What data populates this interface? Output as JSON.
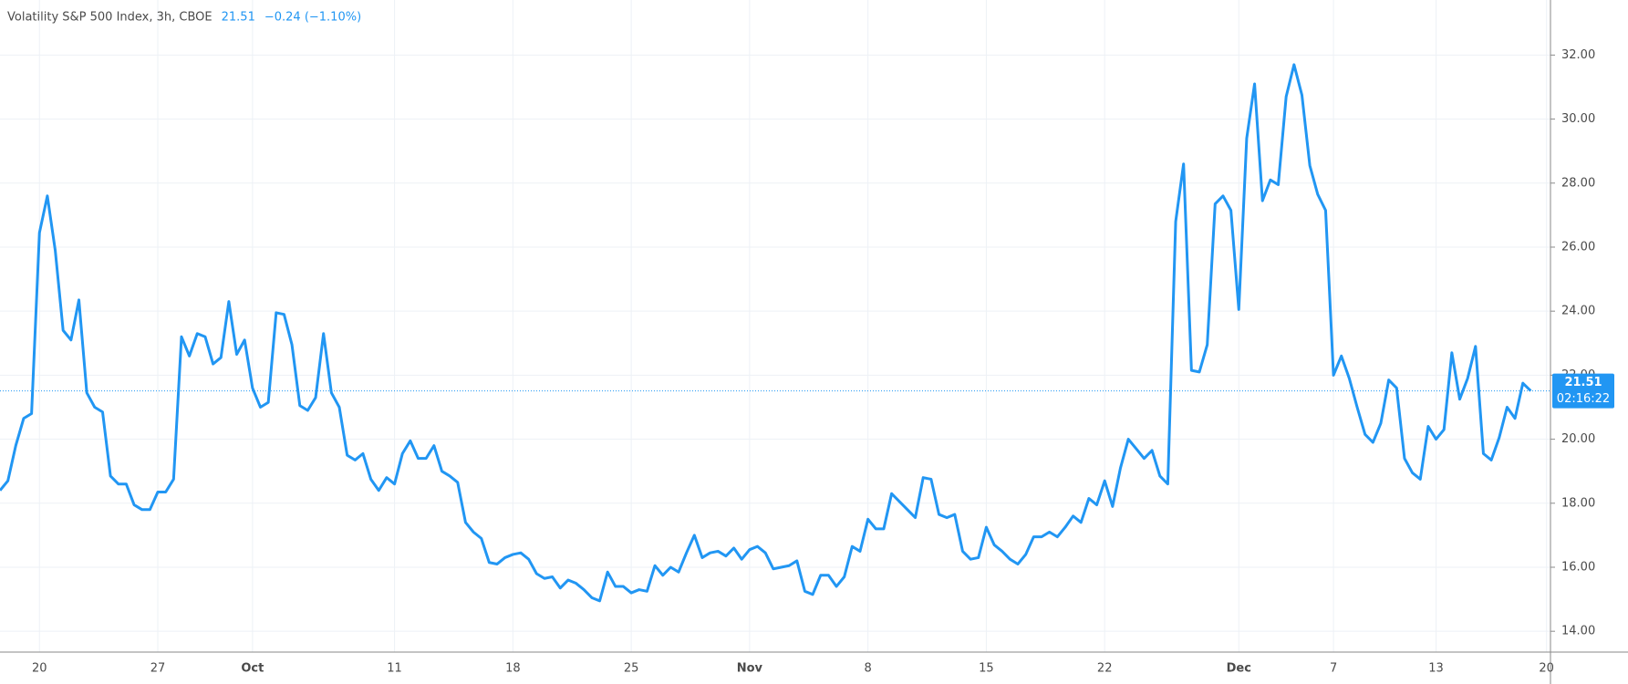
{
  "chart_data": {
    "type": "line",
    "title": "Volatility S&P 500 Index, 3h, CBOE",
    "change": "−0.24 (−1.10%)",
    "countdown": "02:16:22",
    "color": "#2196f3",
    "grid": true,
    "ylim": [
      13.35,
      33.72
    ],
    "yticks": [
      {
        "value": 14,
        "label": "14.00"
      },
      {
        "value": 16,
        "label": "16.00"
      },
      {
        "value": 18,
        "label": "18.00"
      },
      {
        "value": 20,
        "label": "20.00"
      },
      {
        "value": 22,
        "label": "22.00"
      },
      {
        "value": 24,
        "label": "24.00"
      },
      {
        "value": 26,
        "label": "26.00"
      },
      {
        "value": 28,
        "label": "28.00"
      },
      {
        "value": 30,
        "label": "30.00"
      },
      {
        "value": 32,
        "label": "32.00"
      }
    ],
    "categories": [
      null,
      null,
      null,
      null,
      null,
      "20",
      null,
      null,
      null,
      null,
      null,
      null,
      null,
      null,
      null,
      null,
      null,
      null,
      null,
      null,
      "27",
      null,
      null,
      null,
      null,
      null,
      null,
      null,
      null,
      null,
      null,
      null,
      "Oct",
      null,
      null,
      null,
      null,
      null,
      null,
      null,
      null,
      null,
      null,
      null,
      null,
      null,
      null,
      null,
      null,
      null,
      "11",
      null,
      null,
      null,
      null,
      null,
      null,
      null,
      null,
      null,
      null,
      null,
      null,
      null,
      null,
      "18",
      null,
      null,
      null,
      null,
      null,
      null,
      null,
      null,
      null,
      null,
      null,
      null,
      null,
      null,
      "25",
      null,
      null,
      null,
      null,
      null,
      null,
      null,
      null,
      null,
      null,
      null,
      null,
      null,
      null,
      "Nov",
      null,
      null,
      null,
      null,
      null,
      null,
      null,
      null,
      null,
      null,
      null,
      null,
      null,
      null,
      "8",
      null,
      null,
      null,
      null,
      null,
      null,
      null,
      null,
      null,
      null,
      null,
      null,
      null,
      null,
      "15",
      null,
      null,
      null,
      null,
      null,
      null,
      null,
      null,
      null,
      null,
      null,
      null,
      null,
      null,
      "22",
      null,
      null,
      null,
      null,
      null,
      null,
      null,
      null,
      null,
      null,
      null,
      null,
      null,
      null,
      null,
      null,
      "Dec",
      null,
      null,
      null,
      null,
      null,
      null,
      null,
      null,
      null,
      null,
      null,
      "7",
      null,
      null,
      null,
      null,
      null,
      null,
      null,
      null,
      null,
      null,
      null,
      null,
      "13",
      null,
      null,
      null,
      null,
      null,
      null,
      null,
      null,
      null,
      null,
      null,
      null,
      null,
      "20"
    ],
    "values": [
      18.4,
      18.7,
      19.8,
      20.65,
      20.8,
      26.45,
      27.6,
      25.9,
      23.4,
      23.1,
      24.35,
      21.45,
      21.0,
      20.85,
      18.85,
      18.6,
      18.6,
      17.95,
      17.8,
      17.8,
      18.35,
      18.35,
      18.75,
      23.2,
      22.6,
      23.3,
      23.2,
      22.35,
      22.55,
      24.3,
      22.65,
      23.1,
      21.6,
      21.0,
      21.15,
      23.95,
      23.9,
      22.95,
      21.05,
      20.9,
      21.3,
      23.3,
      21.45,
      21.0,
      19.5,
      19.35,
      19.55,
      18.75,
      18.4,
      18.8,
      18.6,
      19.55,
      19.95,
      19.4,
      19.4,
      19.8,
      19.0,
      18.85,
      18.65,
      17.4,
      17.1,
      16.9,
      16.15,
      16.1,
      16.3,
      16.4,
      16.45,
      16.25,
      15.8,
      15.65,
      15.7,
      15.35,
      15.6,
      15.5,
      15.3,
      15.05,
      14.95,
      15.85,
      15.4,
      15.4,
      15.2,
      15.3,
      15.25,
      16.05,
      15.75,
      16.0,
      15.85,
      16.45,
      17.0,
      16.3,
      16.45,
      16.5,
      16.35,
      16.6,
      16.25,
      16.55,
      16.65,
      16.45,
      15.95,
      16.0,
      16.05,
      16.2,
      15.25,
      15.15,
      15.75,
      15.75,
      15.4,
      15.7,
      16.65,
      16.5,
      17.5,
      17.2,
      17.2,
      18.3,
      18.05,
      17.8,
      17.55,
      18.8,
      18.75,
      17.65,
      17.55,
      17.65,
      16.5,
      16.25,
      16.3,
      17.25,
      16.7,
      16.5,
      16.25,
      16.1,
      16.4,
      16.95,
      16.95,
      17.1,
      16.95,
      17.25,
      17.6,
      17.4,
      18.15,
      17.95,
      18.7,
      17.9,
      19.1,
      20.0,
      19.7,
      19.4,
      19.65,
      18.85,
      18.6,
      26.8,
      28.6,
      22.15,
      22.1,
      22.95,
      27.35,
      27.6,
      27.15,
      24.05,
      29.4,
      31.1,
      27.45,
      28.1,
      27.95,
      30.7,
      31.7,
      30.75,
      28.55,
      27.65,
      27.15,
      22.0,
      22.6,
      21.9,
      21.0,
      20.15,
      19.9,
      20.5,
      21.85,
      21.6,
      19.4,
      18.95,
      18.75,
      20.4,
      20.0,
      20.3,
      22.7,
      21.25,
      21.9,
      22.9,
      19.55,
      19.35,
      20.05,
      21.0,
      20.65,
      21.75,
      21.51,
      null,
      null
    ]
  }
}
